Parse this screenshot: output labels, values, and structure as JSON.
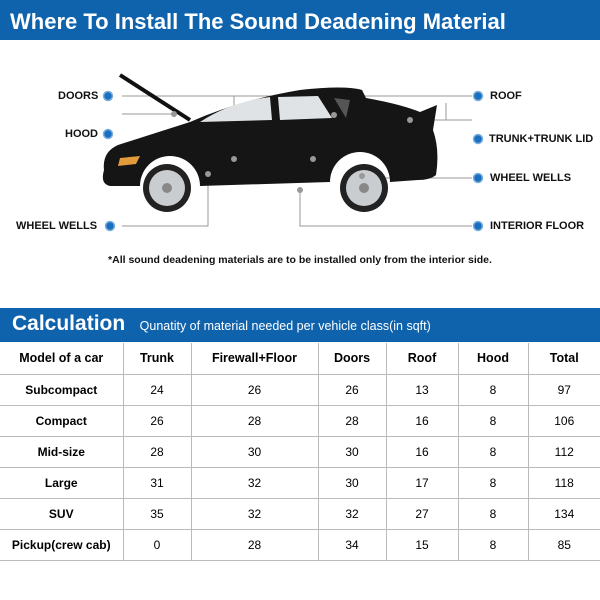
{
  "header": {
    "title": "Where To Install The Sound Deadening Material"
  },
  "diagram": {
    "labels": {
      "doors": "DOORS",
      "hood": "HOOD",
      "wheel_wells_left": "WHEEL WELLS",
      "roof": "ROOF",
      "trunk": "TRUNK+TRUNK LID",
      "wheel_wells_right": "WHEEL WELLS",
      "interior_floor": "INTERIOR FLOOR"
    },
    "note": "*All sound deadening materials are to be installed only from the interior side.",
    "marker_color": "#1a6fc0"
  },
  "calc": {
    "title": "Calculation",
    "subtitle": "Qunatity of material needed per vehicle class(in sqft)"
  },
  "table": {
    "headers": [
      "Model of a car",
      "Trunk",
      "Firewall+Floor",
      "Doors",
      "Roof",
      "Hood",
      "Total"
    ],
    "rows": [
      [
        "Subcompact",
        "24",
        "26",
        "26",
        "13",
        "8",
        "97"
      ],
      [
        "Compact",
        "26",
        "28",
        "28",
        "16",
        "8",
        "106"
      ],
      [
        "Mid-size",
        "28",
        "30",
        "30",
        "16",
        "8",
        "112"
      ],
      [
        "Large",
        "31",
        "32",
        "30",
        "17",
        "8",
        "118"
      ],
      [
        "SUV",
        "35",
        "32",
        "32",
        "27",
        "8",
        "134"
      ],
      [
        "Pickup(crew cab)",
        "0",
        "28",
        "34",
        "15",
        "8",
        "85"
      ]
    ]
  },
  "colors": {
    "brand": "#0f63ad"
  }
}
